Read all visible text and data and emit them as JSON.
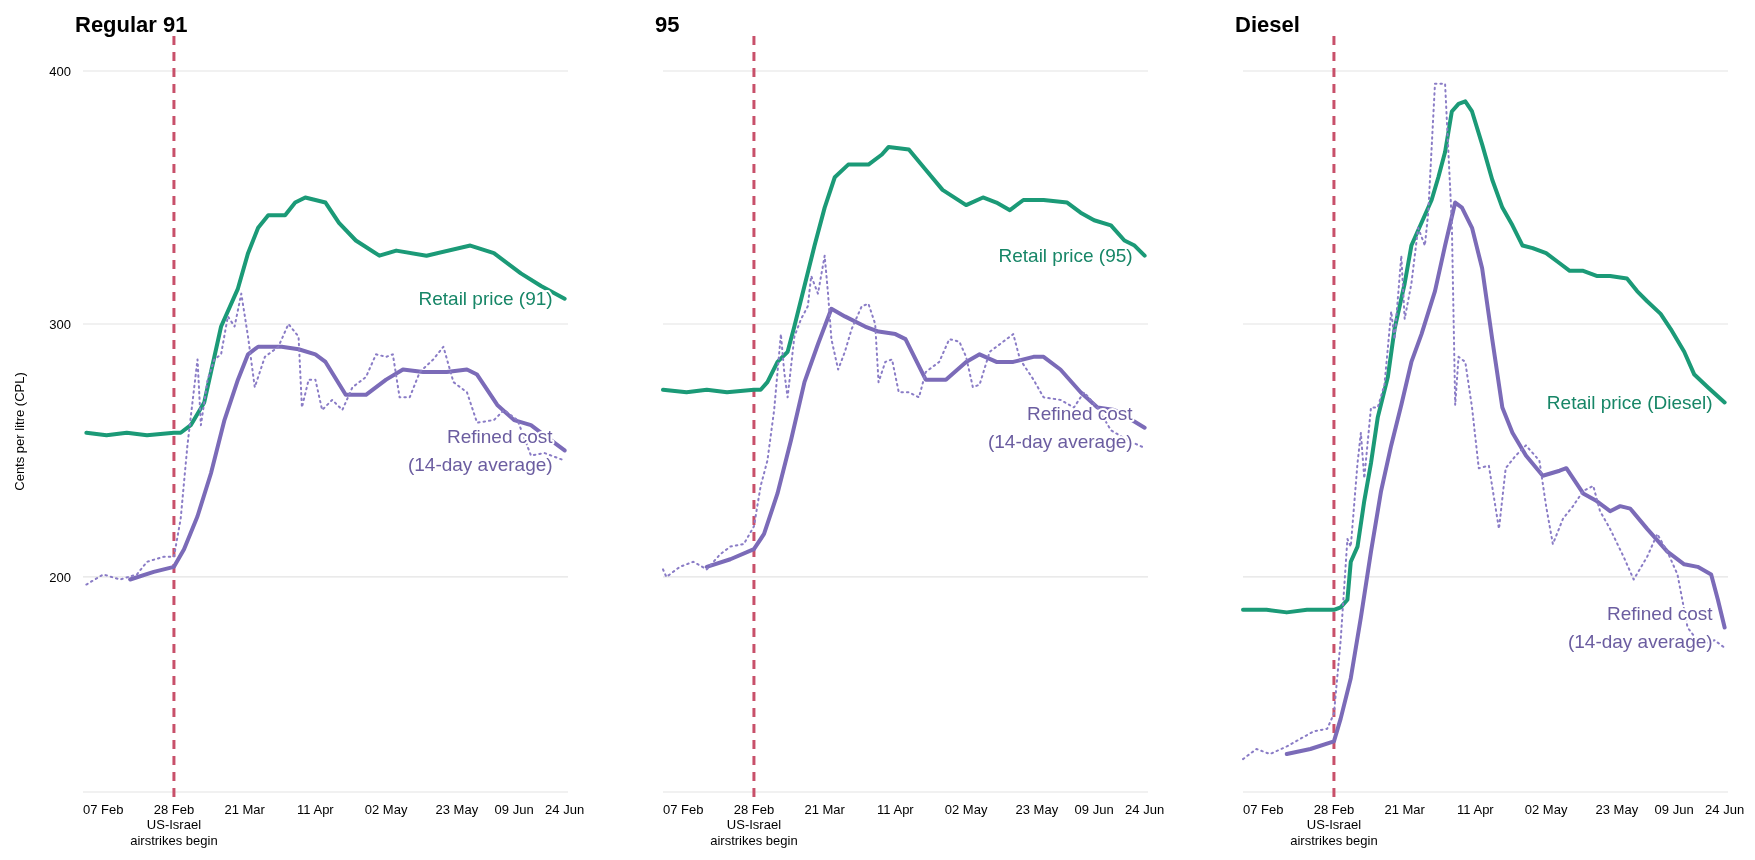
{
  "chart_data": [
    {
      "type": "line",
      "title": "Regular 91",
      "ylabel": "Cents per litre (CPL)",
      "xlim": [
        "--02-01",
        "--06-25"
      ],
      "ylim": [
        115,
        400
      ],
      "yticks": [
        200,
        300,
        400
      ],
      "xticks": [
        {
          "value": "--02-07",
          "label": "07 Feb"
        },
        {
          "value": "--02-28",
          "label": "28 Feb"
        },
        {
          "value": "--03-21",
          "label": "21 Mar"
        },
        {
          "value": "--04-11",
          "label": "11 Apr"
        },
        {
          "value": "--05-02",
          "label": "02 May"
        },
        {
          "value": "--05-23",
          "label": "23 May"
        },
        {
          "value": "--06-09",
          "label": "09 Jun"
        },
        {
          "value": "--06-24",
          "label": "24 Jun"
        }
      ],
      "grid": "y",
      "ref_lines": [
        {
          "axis": "x",
          "value": "--02-28",
          "label": "US-Israel\nairstrikes begin",
          "color": "#c8506a",
          "line_style": "dashed"
        }
      ],
      "series": [
        {
          "name": "Retail price (91)",
          "color": "#1b9a77",
          "line_style": "solid",
          "x": [
            "--02-02",
            "--02-08",
            "--02-14",
            "--02-20",
            "--02-28",
            "--03-02",
            "--03-05",
            "--03-09",
            "--03-11",
            "--03-14",
            "--03-19",
            "--03-22",
            "--03-25",
            "--03-28",
            "--04-02",
            "--04-05",
            "--04-08",
            "--04-14",
            "--04-18",
            "--04-23",
            "--04-30",
            "--05-05",
            "--05-14",
            "--05-27",
            "--06-03",
            "--06-11",
            "--06-17",
            "--06-24"
          ],
          "values": [
            257,
            256,
            257,
            256,
            257,
            257,
            260,
            269,
            281,
            299,
            314,
            328,
            338,
            343,
            343,
            348,
            350,
            348,
            340,
            333,
            327,
            329,
            327,
            331,
            328,
            320,
            315,
            310
          ]
        },
        {
          "name": "Refined cost\n(14-day average)",
          "color": "#7b6bb8",
          "line_style": "solid",
          "x": [
            "--02-15",
            "--02-22",
            "--02-28",
            "--03-03",
            "--03-07",
            "--03-11",
            "--03-15",
            "--03-19",
            "--03-22",
            "--03-25",
            "--04-01",
            "--04-06",
            "--04-11",
            "--04-14",
            "--04-20",
            "--04-26",
            "--05-02",
            "--05-07",
            "--05-13",
            "--05-20",
            "--05-26",
            "--05-29",
            "--06-04",
            "--06-09",
            "--06-14",
            "--06-19",
            "--06-24"
          ],
          "values": [
            199,
            202,
            204,
            211,
            224,
            241,
            262,
            278,
            288,
            291,
            291,
            290,
            288,
            285,
            272,
            272,
            278,
            282,
            281,
            281,
            282,
            280,
            268,
            262,
            260,
            255,
            250
          ]
        },
        {
          "color": "#8a7cc6",
          "line_style": "dotted",
          "x": [
            "--02-02",
            "--02-07",
            "--02-12",
            "--02-17",
            "--02-20",
            "--02-25",
            "--02-28",
            "--03-02",
            "--03-04",
            "--03-07",
            "--03-08",
            "--03-10",
            "--03-12",
            "--03-14",
            "--03-16",
            "--03-18",
            "--03-20",
            "--03-22",
            "--03-24",
            "--03-27",
            "--03-31",
            "--04-03",
            "--04-06",
            "--04-07",
            "--04-09",
            "--04-11",
            "--04-13",
            "--04-16",
            "--04-19",
            "--04-22",
            "--04-26",
            "--04-29",
            "--05-02",
            "--05-04",
            "--05-06",
            "--05-09",
            "--05-12",
            "--05-16",
            "--05-19",
            "--05-22",
            "--05-26",
            "--05-29",
            "--06-03",
            "--06-06",
            "--06-10",
            "--06-14",
            "--06-18",
            "--06-24"
          ],
          "values": [
            197,
            201,
            199,
            201,
            206,
            208,
            208,
            223,
            252,
            286,
            260,
            278,
            286,
            288,
            303,
            299,
            312,
            295,
            275,
            287,
            291,
            300,
            295,
            267,
            278,
            278,
            266,
            270,
            266,
            275,
            279,
            288,
            287,
            288,
            271,
            271,
            281,
            286,
            291,
            277,
            273,
            261,
            262,
            266,
            262,
            248,
            249,
            246
          ]
        }
      ]
    },
    {
      "type": "line",
      "title": "95",
      "xlim": [
        "--02-01",
        "--06-25"
      ],
      "ylim": [
        115,
        400
      ],
      "yticks": [
        200,
        300,
        400
      ],
      "xticks": [
        {
          "value": "--02-07",
          "label": "07 Feb"
        },
        {
          "value": "--02-28",
          "label": "28 Feb"
        },
        {
          "value": "--03-21",
          "label": "21 Mar"
        },
        {
          "value": "--04-11",
          "label": "11 Apr"
        },
        {
          "value": "--05-02",
          "label": "02 May"
        },
        {
          "value": "--05-23",
          "label": "23 May"
        },
        {
          "value": "--06-09",
          "label": "09 Jun"
        },
        {
          "value": "--06-24",
          "label": "24 Jun"
        }
      ],
      "grid": "y",
      "tick_labels": "x",
      "ref_lines": [
        {
          "axis": "x",
          "value": "--02-28",
          "label": "US-Israel\nairstrikes begin",
          "color": "#c8506a",
          "line_style": "dashed"
        }
      ],
      "series": [
        {
          "name": "Retail price (95)",
          "color": "#1b9a77",
          "line_style": "solid",
          "x": [
            "--02-01",
            "--02-08",
            "--02-14",
            "--02-20",
            "--02-28",
            "--03-02",
            "--03-04",
            "--03-07",
            "--03-10",
            "--03-12",
            "--03-15",
            "--03-18",
            "--03-21",
            "--03-24",
            "--03-28",
            "--04-03",
            "--04-07",
            "--04-09",
            "--04-15",
            "--04-20",
            "--04-25",
            "--05-02",
            "--05-07",
            "--05-11",
            "--05-15",
            "--05-19",
            "--05-25",
            "--06-01",
            "--06-05",
            "--06-09",
            "--06-14",
            "--06-18",
            "--06-21",
            "--06-24"
          ],
          "values": [
            274,
            273,
            274,
            273,
            274,
            274,
            277,
            285,
            289,
            299,
            315,
            331,
            346,
            358,
            363,
            363,
            367,
            370,
            369,
            361,
            353,
            347,
            350,
            348,
            345,
            349,
            349,
            348,
            344,
            341,
            339,
            333,
            331,
            327
          ]
        },
        {
          "name": "Refined cost\n(14-day average)",
          "color": "#7b6bb8",
          "line_style": "solid",
          "x": [
            "--02-14",
            "--02-21",
            "--02-28",
            "--03-03",
            "--03-07",
            "--03-11",
            "--03-15",
            "--03-19",
            "--03-23",
            "--03-27",
            "--04-02",
            "--04-06",
            "--04-11",
            "--04-14",
            "--04-20",
            "--04-26",
            "--05-02",
            "--05-06",
            "--05-11",
            "--05-16",
            "--05-22",
            "--05-25",
            "--05-30",
            "--06-05",
            "--06-10",
            "--06-15",
            "--06-19",
            "--06-24"
          ],
          "values": [
            204,
            207,
            211,
            217,
            233,
            254,
            277,
            292,
            306,
            303,
            299,
            297,
            296,
            294,
            278,
            278,
            285,
            288,
            285,
            285,
            287,
            287,
            282,
            273,
            267,
            266,
            263,
            259
          ]
        },
        {
          "color": "#8a7cc6",
          "line_style": "dotted",
          "x": [
            "--02-01",
            "--02-02",
            "--02-06",
            "--02-10",
            "--02-14",
            "--02-18",
            "--02-21",
            "--02-25",
            "--02-28",
            "--03-02",
            "--03-04",
            "--03-06",
            "--03-08",
            "--03-09",
            "--03-10",
            "--03-12",
            "--03-14",
            "--03-16",
            "--03-17",
            "--03-19",
            "--03-21",
            "--03-22",
            "--03-23",
            "--03-25",
            "--03-27",
            "--03-29",
            "--04-01",
            "--04-03",
            "--04-05",
            "--04-06",
            "--04-08",
            "--04-10",
            "--04-12",
            "--04-15",
            "--04-18",
            "--04-20",
            "--04-24",
            "--04-27",
            "--04-30",
            "--05-02",
            "--05-04",
            "--05-06",
            "--05-09",
            "--05-13",
            "--05-16",
            "--05-18",
            "--05-22",
            "--05-25",
            "--05-30",
            "--06-03",
            "--06-06",
            "--06-10",
            "--06-14",
            "--06-19",
            "--06-24"
          ],
          "values": [
            203,
            200,
            204,
            206,
            203,
            209,
            212,
            213,
            220,
            236,
            246,
            266,
            296,
            281,
            271,
            295,
            302,
            307,
            319,
            312,
            327,
            312,
            294,
            282,
            289,
            298,
            307,
            308,
            300,
            277,
            285,
            286,
            273,
            273,
            271,
            281,
            285,
            294,
            293,
            287,
            275,
            276,
            289,
            293,
            296,
            286,
            278,
            271,
            270,
            267,
            273,
            267,
            258,
            254,
            251
          ]
        }
      ]
    },
    {
      "type": "line",
      "title": "Diesel",
      "xlim": [
        "--02-01",
        "--06-25"
      ],
      "ylim": [
        115,
        400
      ],
      "yticks": [
        200,
        300,
        400
      ],
      "xticks": [
        {
          "value": "--02-07",
          "label": "07 Feb"
        },
        {
          "value": "--02-28",
          "label": "28 Feb"
        },
        {
          "value": "--03-21",
          "label": "21 Mar"
        },
        {
          "value": "--04-11",
          "label": "11 Apr"
        },
        {
          "value": "--05-02",
          "label": "02 May"
        },
        {
          "value": "--05-23",
          "label": "23 May"
        },
        {
          "value": "--06-09",
          "label": "09 Jun"
        },
        {
          "value": "--06-24",
          "label": "24 Jun"
        }
      ],
      "grid": "y",
      "tick_labels": "x",
      "ref_lines": [
        {
          "axis": "x",
          "value": "--02-28",
          "label": "US-Israel\nairstrikes begin",
          "color": "#c8506a",
          "line_style": "dashed"
        }
      ],
      "series": [
        {
          "name": "Retail price (Diesel)",
          "color": "#1b9a77",
          "line_style": "solid",
          "x": [
            "--02-01",
            "--02-08",
            "--02-14",
            "--02-20",
            "--02-28",
            "--03-02",
            "--03-04",
            "--03-05",
            "--03-07",
            "--03-09",
            "--03-11",
            "--03-13",
            "--03-16",
            "--03-18",
            "--03-21",
            "--03-23",
            "--03-26",
            "--03-29",
            "--03-31",
            "--04-02",
            "--04-04",
            "--04-06",
            "--04-08",
            "--04-10",
            "--04-13",
            "--04-16",
            "--04-19",
            "--04-22",
            "--04-25",
            "--04-28",
            "--05-02",
            "--05-06",
            "--05-09",
            "--05-13",
            "--05-17",
            "--05-21",
            "--05-26",
            "--05-29",
            "--06-01",
            "--06-05",
            "--06-08",
            "--06-12",
            "--06-15",
            "--06-19",
            "--06-24"
          ],
          "values": [
            187,
            187,
            186,
            187,
            187,
            188,
            191,
            206,
            212,
            230,
            245,
            263,
            279,
            298,
            316,
            331,
            340,
            349,
            358,
            368,
            384,
            387,
            388,
            384,
            371,
            357,
            346,
            339,
            331,
            330,
            328,
            324,
            321,
            321,
            319,
            319,
            318,
            313,
            309,
            304,
            298,
            289,
            280,
            275,
            269
          ]
        },
        {
          "name": "Refined cost\n(14-day average)",
          "color": "#7b6bb8",
          "line_style": "solid",
          "x": [
            "--02-14",
            "--02-21",
            "--02-28",
            "--03-02",
            "--03-05",
            "--03-08",
            "--03-11",
            "--03-14",
            "--03-17",
            "--03-20",
            "--03-23",
            "--03-26",
            "--03-30",
            "--04-02",
            "--04-05",
            "--04-07",
            "--04-10",
            "--04-13",
            "--04-16",
            "--04-19",
            "--04-22",
            "--04-26",
            "--05-01",
            "--05-06",
            "--05-08",
            "--05-13",
            "--05-17",
            "--05-21",
            "--05-24",
            "--05-27",
            "--06-01",
            "--06-07",
            "--06-12",
            "--06-16",
            "--06-20",
            "--06-22",
            "--06-24"
          ],
          "values": [
            130,
            132,
            135,
            144,
            160,
            184,
            210,
            234,
            252,
            268,
            285,
            296,
            313,
            331,
            348,
            346,
            338,
            322,
            294,
            267,
            257,
            248,
            240,
            242,
            243,
            233,
            230,
            226,
            228,
            227,
            219,
            210,
            205,
            204,
            201,
            191,
            180
          ]
        },
        {
          "color": "#8a7cc6",
          "line_style": "dotted",
          "x": [
            "--02-01",
            "--02-05",
            "--02-09",
            "--02-14",
            "--02-18",
            "--02-22",
            "--02-26",
            "--02-28",
            "--03-02",
            "--03-04",
            "--03-05",
            "--03-07",
            "--03-08",
            "--03-09",
            "--03-11",
            "--03-13",
            "--03-15",
            "--03-17",
            "--03-18",
            "--03-20",
            "--03-21",
            "--03-23",
            "--03-25",
            "--03-27",
            "--03-28",
            "--03-30",
            "--04-02",
            "--04-04",
            "--04-05",
            "--04-06",
            "--04-08",
            "--04-10",
            "--04-12",
            "--04-15",
            "--04-18",
            "--04-20",
            "--04-23",
            "--04-26",
            "--04-30",
            "--05-02",
            "--05-04",
            "--05-07",
            "--05-10",
            "--05-13",
            "--05-16",
            "--05-18",
            "--05-21",
            "--05-25",
            "--05-28",
            "--06-01",
            "--06-04",
            "--06-07",
            "--06-10",
            "--06-13",
            "--06-17",
            "--06-21",
            "--06-24"
          ],
          "values": [
            128,
            132,
            130,
            133,
            136,
            139,
            140,
            146,
            175,
            215,
            212,
            245,
            257,
            239,
            267,
            267,
            276,
            305,
            294,
            327,
            302,
            316,
            338,
            331,
            344,
            395,
            395,
            340,
            268,
            287,
            285,
            267,
            243,
            244,
            219,
            243,
            248,
            252,
            246,
            228,
            213,
            223,
            228,
            234,
            236,
            226,
            219,
            208,
            199,
            208,
            217,
            210,
            201,
            180,
            173,
            175,
            172
          ]
        }
      ]
    }
  ]
}
